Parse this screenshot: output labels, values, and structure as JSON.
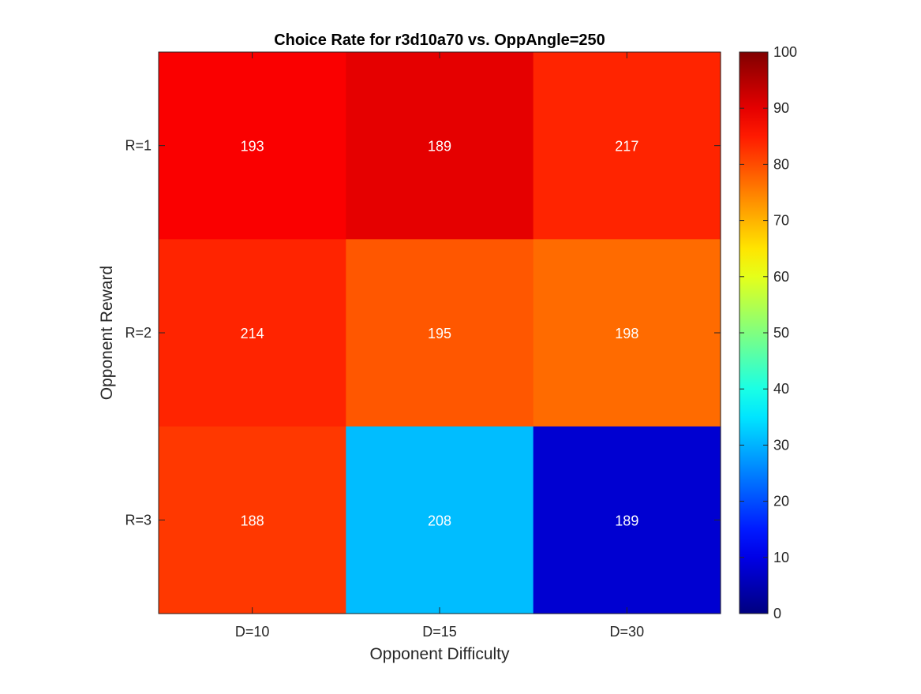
{
  "chart_data": {
    "type": "heatmap",
    "title": "Choice Rate for r3d10a70 vs. OppAngle=250",
    "xlabel": "Opponent Difficulty",
    "ylabel": "Opponent Reward",
    "x_categories": [
      "D=10",
      "D=15",
      "D=30"
    ],
    "y_categories": [
      "R=1",
      "R=2",
      "R=3"
    ],
    "cell_labels": [
      [
        193,
        189,
        217
      ],
      [
        214,
        195,
        198
      ],
      [
        188,
        208,
        189
      ]
    ],
    "values": [
      [
        88,
        90,
        84
      ],
      [
        84,
        79,
        77
      ],
      [
        82,
        31,
        8
      ]
    ],
    "colormap": "jet",
    "clim": [
      0,
      100
    ],
    "colorbar_ticks": [
      0,
      10,
      20,
      30,
      40,
      50,
      60,
      70,
      80,
      90,
      100
    ],
    "colorbar_location": "right",
    "grid": false,
    "cell_label_color": "#ffffff",
    "axis_color": "#262626"
  }
}
